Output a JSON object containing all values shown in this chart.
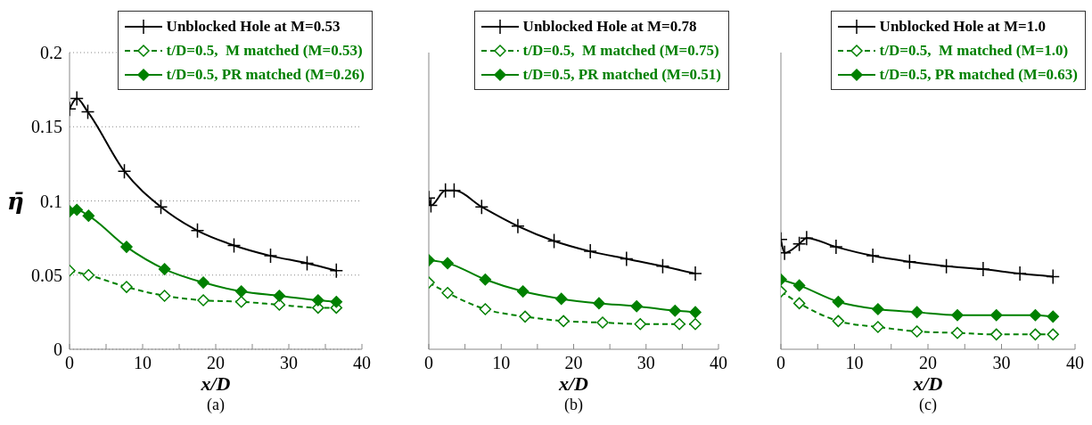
{
  "chart_data": [
    {
      "type": "line",
      "xlabel": "x/D",
      "ylabel": "η̄",
      "annotations": [
        "(a)"
      ],
      "xlim": [
        0,
        40
      ],
      "ylim": [
        0,
        0.2
      ],
      "xticks": [
        0,
        {
          "value": 5,
          "label": null
        },
        10,
        {
          "value": 15,
          "label": null
        },
        20,
        {
          "value": 25,
          "label": null
        },
        30,
        {
          "value": 35,
          "label": null
        },
        40
      ],
      "yticks": [
        0,
        0.05,
        0.1,
        0.15,
        0.2
      ],
      "grid": "y",
      "legend": "top right",
      "series": [
        {
          "name": "Unblocked Hole at M=0.53",
          "color": "#000000",
          "marker": "cross",
          "line_style": "solid",
          "x": [
            0,
            1,
            2.5,
            7.5,
            12.5,
            17.5,
            22.5,
            27.5,
            32.5,
            36.5
          ],
          "values": [
            0.162,
            0.169,
            0.16,
            0.12,
            0.096,
            0.08,
            0.07,
            0.063,
            0.058,
            0.053
          ]
        },
        {
          "name": "t/D=0.5,  M matched (M=0.53)",
          "color": "#008000",
          "marker": "diamond",
          "line_style": "dashed",
          "x": [
            0,
            2.6,
            7.8,
            13,
            18.3,
            23.5,
            28.7,
            34,
            36.5
          ],
          "values": [
            0.053,
            0.05,
            0.042,
            0.036,
            0.033,
            0.032,
            0.03,
            0.028,
            0.028
          ]
        },
        {
          "name": "t/D=0.5, PR matched (M=0.26)",
          "color": "#008000",
          "marker": "diamond",
          "line_style": "solid",
          "x": [
            0,
            1,
            2.6,
            7.8,
            13,
            18.3,
            23.5,
            28.7,
            34,
            36.5
          ],
          "values": [
            0.093,
            0.094,
            0.09,
            0.069,
            0.054,
            0.045,
            0.039,
            0.036,
            0.033,
            0.032
          ]
        }
      ]
    },
    {
      "type": "line",
      "xlabel": "x/D",
      "annotations": [
        "(b)"
      ],
      "xlim": [
        0,
        40
      ],
      "ylim": [
        0,
        0.2
      ],
      "tick_labels": "x",
      "xticks": [
        0,
        {
          "value": 5,
          "label": null
        },
        10,
        {
          "value": 15,
          "label": null
        },
        20,
        {
          "value": 25,
          "label": null
        },
        30,
        {
          "value": 35,
          "label": null
        },
        40
      ],
      "yticks": [
        0,
        0.05,
        0.1,
        0.15,
        0.2
      ],
      "grid": "y",
      "legend": "top right",
      "series": [
        {
          "name": "Unblocked Hole at M=0.78",
          "color": "#000000",
          "marker": "cross",
          "line_style": "solid",
          "x": [
            0,
            0.3,
            2.3,
            3.5,
            7.3,
            12.3,
            17.3,
            22.3,
            27.3,
            32.3,
            36.8
          ],
          "values": [
            0.102,
            0.097,
            0.107,
            0.107,
            0.096,
            0.083,
            0.073,
            0.066,
            0.061,
            0.056,
            0.051
          ]
        },
        {
          "name": "t/D=0.5,  M matched (M=0.75)",
          "color": "#008000",
          "marker": "diamond",
          "line_style": "dashed",
          "x": [
            0,
            2.6,
            7.8,
            13.3,
            18.6,
            24,
            29.2,
            34.6,
            36.8
          ],
          "values": [
            0.045,
            0.038,
            0.027,
            0.022,
            0.019,
            0.018,
            0.017,
            0.017,
            0.017
          ]
        },
        {
          "name": "t/D=0.5, PR matched (M=0.51)",
          "color": "#008000",
          "marker": "diamond",
          "line_style": "solid",
          "x": [
            0,
            2.6,
            7.8,
            13,
            18.3,
            23.5,
            28.7,
            34,
            36.8
          ],
          "values": [
            0.06,
            0.058,
            0.047,
            0.039,
            0.034,
            0.031,
            0.029,
            0.026,
            0.025
          ]
        }
      ]
    },
    {
      "type": "line",
      "xlabel": "x/D",
      "annotations": [
        "(c)"
      ],
      "xlim": [
        0,
        40
      ],
      "ylim": [
        0,
        0.2
      ],
      "tick_labels": "x",
      "xticks": [
        0,
        {
          "value": 5,
          "label": null
        },
        10,
        {
          "value": 15,
          "label": null
        },
        20,
        {
          "value": 25,
          "label": null
        },
        30,
        {
          "value": 35,
          "label": null
        },
        40
      ],
      "yticks": [
        0,
        0.05,
        0.1,
        0.15,
        0.2
      ],
      "grid": "y",
      "legend": "top right",
      "series": [
        {
          "name": "Unblocked Hole at M=1.0",
          "color": "#000000",
          "marker": "cross",
          "line_style": "solid",
          "x": [
            0,
            0.5,
            2.5,
            3.5,
            7.5,
            12.5,
            17.5,
            22.5,
            27.5,
            32.5,
            37
          ],
          "values": [
            0.074,
            0.065,
            0.071,
            0.075,
            0.069,
            0.063,
            0.059,
            0.056,
            0.054,
            0.051,
            0.049
          ]
        },
        {
          "name": "t/D=0.5,  M matched (M=1.0)",
          "color": "#008000",
          "marker": "diamond",
          "line_style": "dashed",
          "x": [
            0,
            2.5,
            7.8,
            13.2,
            18.5,
            24,
            29.3,
            34.6,
            37
          ],
          "values": [
            0.039,
            0.031,
            0.019,
            0.015,
            0.012,
            0.011,
            0.01,
            0.01,
            0.01
          ]
        },
        {
          "name": "t/D=0.5, PR matched (M=0.63)",
          "color": "#008000",
          "marker": "diamond",
          "line_style": "solid",
          "x": [
            0,
            2.5,
            7.8,
            13.2,
            18.5,
            24,
            29.3,
            34.6,
            37
          ],
          "values": [
            0.047,
            0.043,
            0.032,
            0.027,
            0.025,
            0.023,
            0.023,
            0.023,
            0.022
          ]
        }
      ]
    }
  ]
}
